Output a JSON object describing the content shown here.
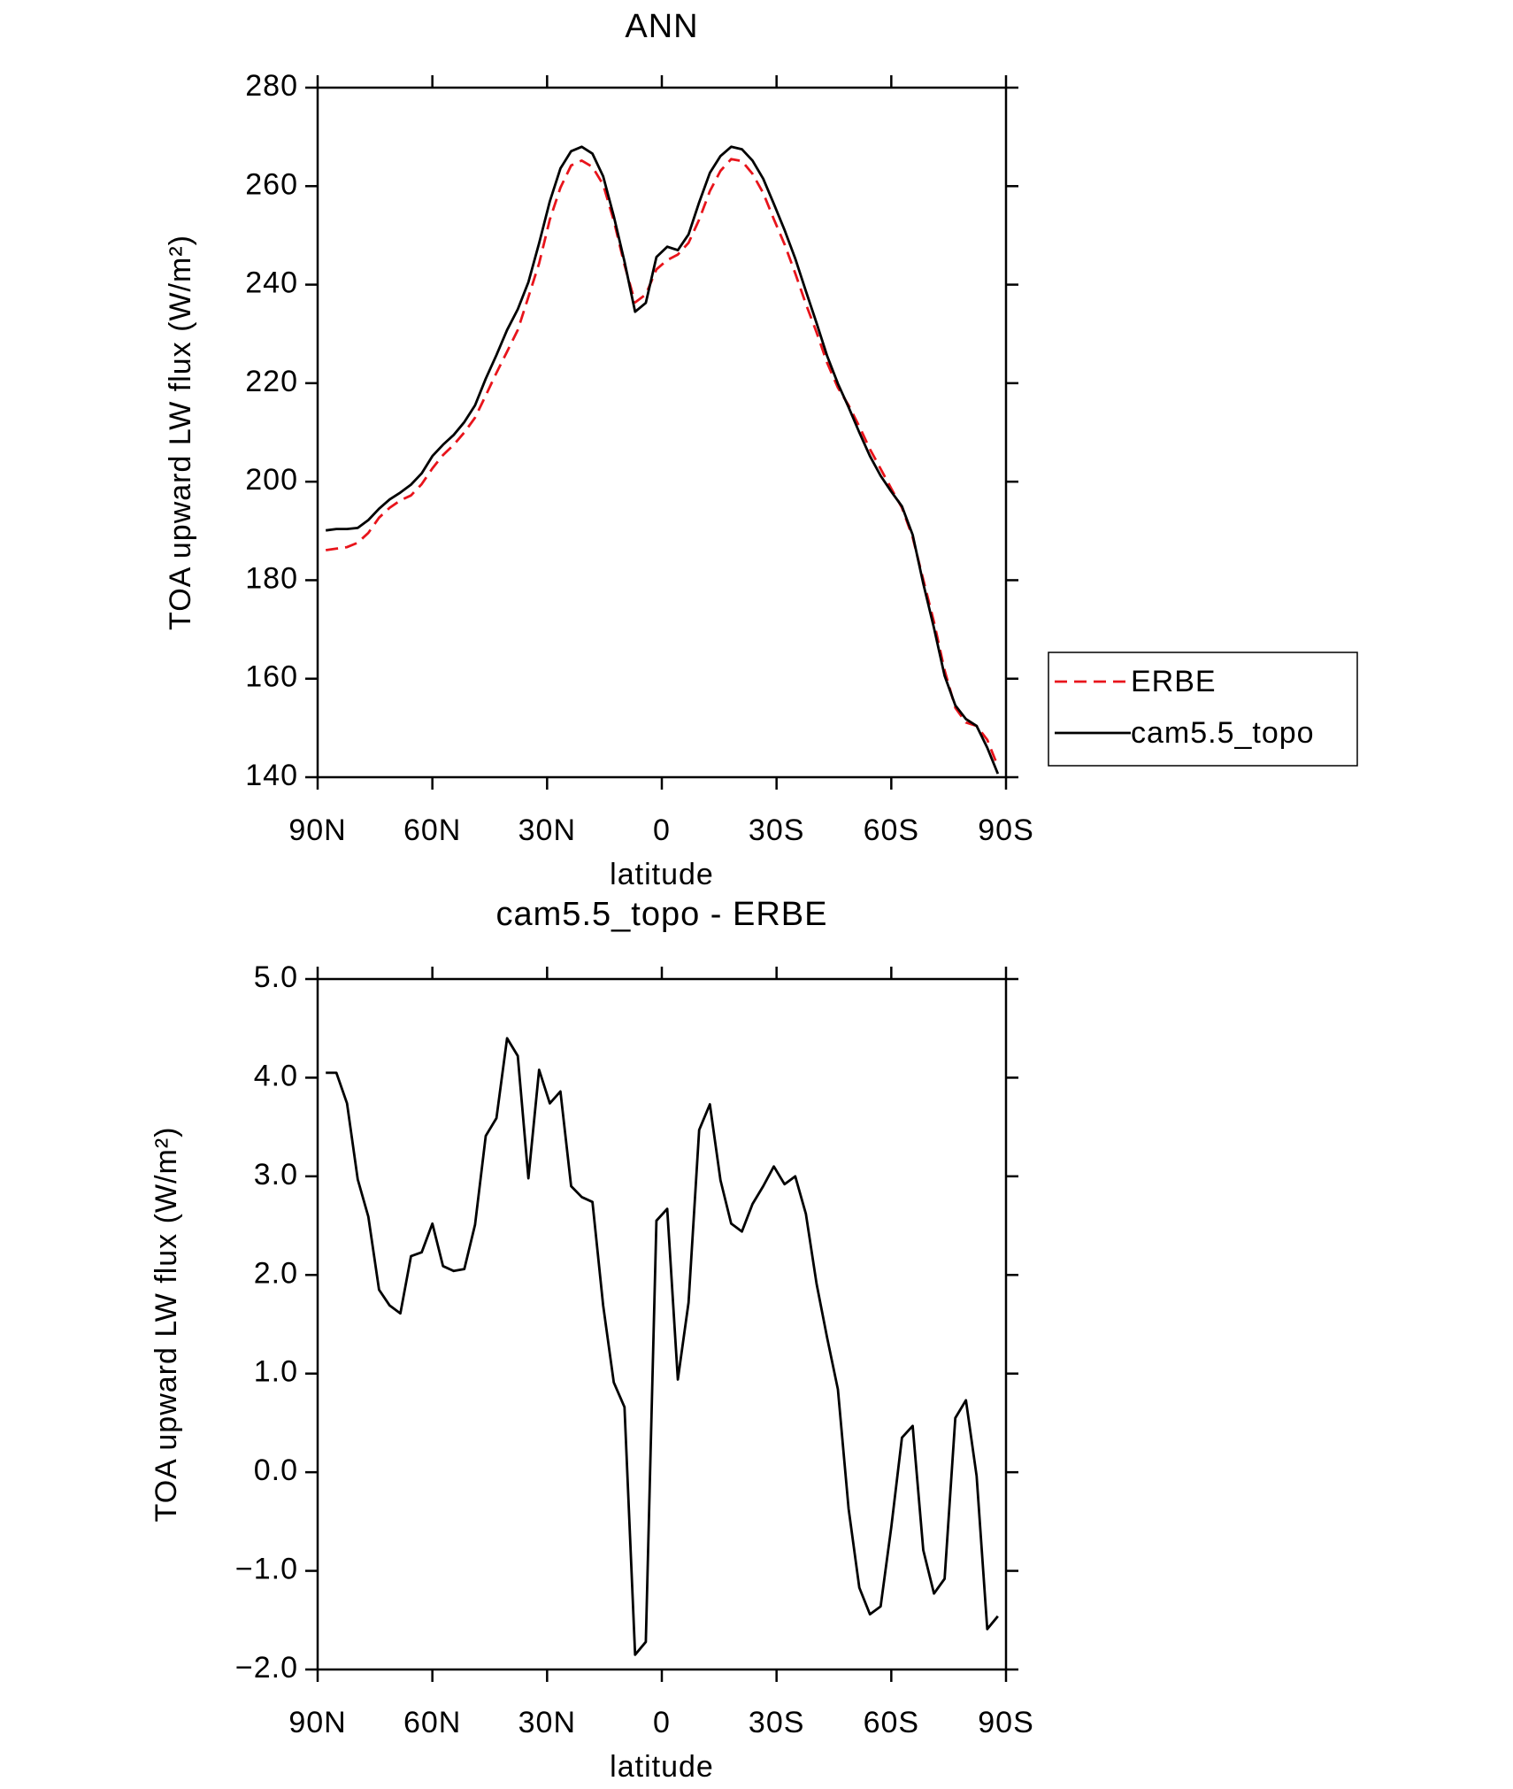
{
  "chart_data": [
    {
      "type": "line",
      "title": "ANN",
      "xlabel": "latitude",
      "ylabel": "TOA upward LW flux (W/m²)",
      "x": [
        87.86,
        85.1,
        82.31,
        79.53,
        76.74,
        73.95,
        71.16,
        68.37,
        65.58,
        62.79,
        60.0,
        57.21,
        54.42,
        51.63,
        48.84,
        46.04,
        43.25,
        40.46,
        37.67,
        34.88,
        32.09,
        29.3,
        26.51,
        23.72,
        20.93,
        18.14,
        15.35,
        12.56,
        9.77,
        6.98,
        4.19,
        1.4,
        -1.4,
        -4.19,
        -6.98,
        -9.77,
        -12.56,
        -15.35,
        -18.14,
        -20.93,
        -23.72,
        -26.51,
        -29.3,
        -32.09,
        -34.88,
        -37.67,
        -40.46,
        -43.25,
        -46.04,
        -48.84,
        -51.63,
        -54.42,
        -57.21,
        -60.0,
        -62.79,
        -65.58,
        -68.37,
        -71.16,
        -73.95,
        -76.74,
        -79.53,
        -82.31,
        -85.1,
        -87.86
      ],
      "series": [
        {
          "name": "ERBE",
          "color": "#e8141b",
          "dash": true,
          "values": [
            186.1,
            186.4,
            186.7,
            187.6,
            189.6,
            192.7,
            194.7,
            196.2,
            197.2,
            199.5,
            202.7,
            205.4,
            207.5,
            210.0,
            213.0,
            217.5,
            222.1,
            226.4,
            230.8,
            237.5,
            244.3,
            253.2,
            259.7,
            264.2,
            265.2,
            263.9,
            260.3,
            253.0,
            244.0,
            236.4,
            238.0,
            243.1,
            245.0,
            246.1,
            248.5,
            253.2,
            259.0,
            263.1,
            265.5,
            265.1,
            262.5,
            258.6,
            253.3,
            248.2,
            242.3,
            236.1,
            230.3,
            224.1,
            219.1,
            215.5,
            211.2,
            206.6,
            202.6,
            198.6,
            194.7,
            188.7,
            180.1,
            171.5,
            161.7,
            154.1,
            151.1,
            150.4,
            147.6,
            142.2
          ]
        },
        {
          "name": "cam5.5_topo",
          "color": "#000000",
          "dash": false,
          "values": [
            190.1,
            190.4,
            190.4,
            190.6,
            192.2,
            194.5,
            196.4,
            197.8,
            199.4,
            201.7,
            205.2,
            207.5,
            209.5,
            212.1,
            215.5,
            220.9,
            225.7,
            230.8,
            235.0,
            240.5,
            248.4,
            256.9,
            263.6,
            267.1,
            268.0,
            266.6,
            262.0,
            253.9,
            244.7,
            234.5,
            236.3,
            245.6,
            247.7,
            247.0,
            250.2,
            256.7,
            262.7,
            266.1,
            268.0,
            267.5,
            265.2,
            261.5,
            256.4,
            251.1,
            245.3,
            238.7,
            232.2,
            225.5,
            219.9,
            215.1,
            210.0,
            205.2,
            201.2,
            198.0,
            195.0,
            189.2,
            179.3,
            170.3,
            160.6,
            154.6,
            151.8,
            150.4,
            146.0,
            140.7
          ]
        }
      ],
      "xlim": [
        90,
        -90
      ],
      "xticks": [
        {
          "value": 90,
          "label": "90N"
        },
        {
          "value": 60,
          "label": "60N"
        },
        {
          "value": 30,
          "label": "30N"
        },
        0,
        {
          "value": -30,
          "label": "30S"
        },
        {
          "value": -60,
          "label": "60S"
        },
        {
          "value": -90,
          "label": "90S"
        }
      ],
      "ylim": [
        140,
        280
      ],
      "yticks": [
        140,
        160,
        180,
        200,
        220,
        240,
        260,
        280
      ],
      "legend": "outside-right"
    },
    {
      "type": "line",
      "title": "cam5.5_topo - ERBE",
      "xlabel": "latitude",
      "ylabel": "TOA upward LW flux (W/m²)",
      "x": [
        87.86,
        85.1,
        82.31,
        79.53,
        76.74,
        73.95,
        71.16,
        68.37,
        65.58,
        62.79,
        60.0,
        57.21,
        54.42,
        51.63,
        48.84,
        46.04,
        43.25,
        40.46,
        37.67,
        34.88,
        32.09,
        29.3,
        26.51,
        23.72,
        20.93,
        18.14,
        15.35,
        12.56,
        9.77,
        6.98,
        4.19,
        1.4,
        -1.4,
        -4.19,
        -6.98,
        -9.77,
        -12.56,
        -15.35,
        -18.14,
        -20.93,
        -23.72,
        -26.51,
        -29.3,
        -32.09,
        -34.88,
        -37.67,
        -40.46,
        -43.25,
        -46.04,
        -48.84,
        -51.63,
        -54.42,
        -57.21,
        -60.0,
        -62.79,
        -65.58,
        -68.37,
        -71.16,
        -73.95,
        -76.74,
        -79.53,
        -82.31,
        -85.1,
        -87.86
      ],
      "series": [
        {
          "color": "#000000",
          "dash": false,
          "values": [
            4.05,
            4.05,
            3.74,
            2.97,
            2.59,
            1.85,
            1.69,
            1.61,
            2.19,
            2.23,
            2.52,
            2.09,
            2.04,
            2.06,
            2.51,
            3.41,
            3.59,
            4.4,
            4.22,
            2.98,
            4.08,
            3.74,
            3.86,
            2.9,
            2.79,
            2.74,
            1.69,
            0.91,
            0.66,
            -1.85,
            -1.72,
            2.55,
            2.67,
            0.94,
            1.72,
            3.47,
            3.73,
            2.96,
            2.52,
            2.44,
            2.72,
            2.9,
            3.1,
            2.92,
            3.0,
            2.62,
            1.91,
            1.36,
            0.84,
            -0.37,
            -1.17,
            -1.44,
            -1.36,
            -0.56,
            0.35,
            0.47,
            -0.79,
            -1.23,
            -1.08,
            0.55,
            0.73,
            -0.04,
            -1.59,
            -1.46
          ]
        }
      ],
      "xlim": [
        90,
        -90
      ],
      "xticks": [
        {
          "value": 90,
          "label": "90N"
        },
        {
          "value": 60,
          "label": "60N"
        },
        {
          "value": 30,
          "label": "30N"
        },
        0,
        {
          "value": -30,
          "label": "30S"
        },
        {
          "value": -60,
          "label": "60S"
        },
        {
          "value": -90,
          "label": "90S"
        }
      ],
      "ylim": [
        -2,
        5
      ],
      "yticks": [
        {
          "value": -2,
          "label": "−2.0"
        },
        {
          "value": -1,
          "label": "−1.0"
        },
        {
          "value": 0,
          "label": "0.0"
        },
        {
          "value": 1,
          "label": "1.0"
        },
        {
          "value": 2,
          "label": "2.0"
        },
        {
          "value": 3,
          "label": "3.0"
        },
        {
          "value": 4,
          "label": "4.0"
        },
        {
          "value": 5,
          "label": "5.0"
        }
      ]
    }
  ]
}
